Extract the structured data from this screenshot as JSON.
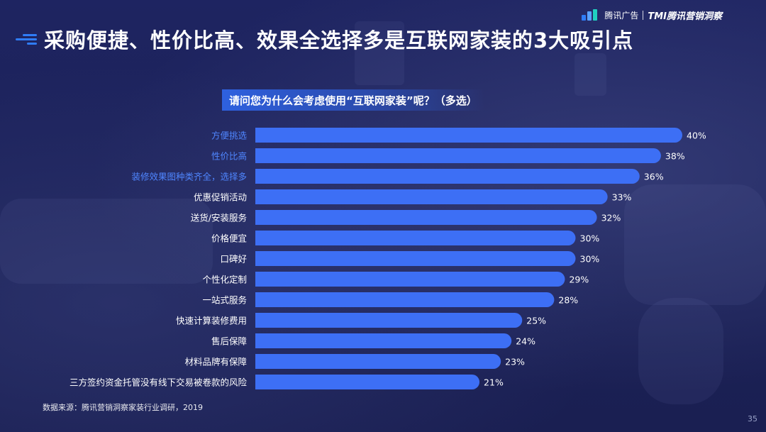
{
  "header": {
    "brand_left": "腾讯广告",
    "brand_right": "TMI腾讯营销洞察"
  },
  "title": "采购便捷、性价比高、效果全选择多是互联网家装的3大吸引点",
  "question": "请问您为什么会考虑使用“互联网家装”呢？（多选）",
  "chart_data": {
    "type": "bar",
    "orientation": "horizontal",
    "categories": [
      "方便挑选",
      "性价比高",
      "装修效果图种类齐全，选择多",
      "优惠促销活动",
      "送货/安装服务",
      "价格便宜",
      "口碑好",
      "个性化定制",
      "一站式服务",
      "快速计算装修费用",
      "售后保障",
      "材料品牌有保障",
      "三方签约资金托管没有线下交易被卷款的风险"
    ],
    "values": [
      40,
      38,
      36,
      33,
      32,
      30,
      30,
      29,
      28,
      25,
      24,
      23,
      21
    ],
    "value_labels": [
      "40%",
      "38%",
      "36%",
      "33%",
      "32%",
      "30%",
      "30%",
      "29%",
      "28%",
      "25%",
      "24%",
      "23%",
      "21%"
    ],
    "highlighted": [
      0,
      1,
      2
    ],
    "xlim": [
      0,
      40
    ],
    "grid": false,
    "colors": {
      "bar": "#3d6ff5",
      "highlight_label": "#4f86ff",
      "label": "#ffffff"
    }
  },
  "footer": {
    "source": "数据来源：腾讯营销洞察家装行业调研，2019",
    "page_number": "35"
  }
}
